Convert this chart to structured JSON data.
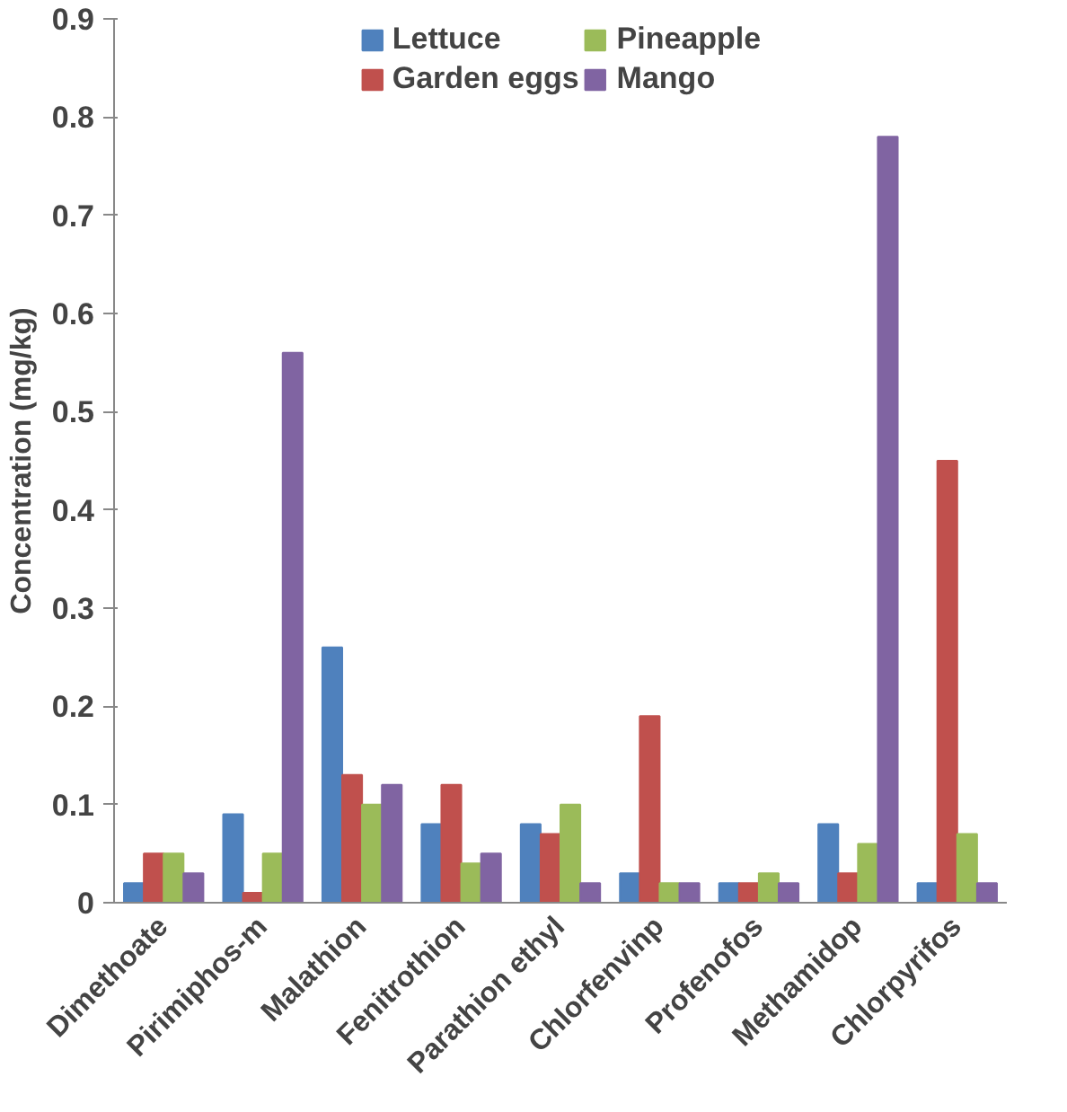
{
  "chart_data": {
    "type": "bar",
    "ylabel": "Concentration (mg/kg)",
    "categories": [
      "Dimethoate",
      "Pirimiphos-m",
      "Malathion",
      "Fenitrothion",
      "Parathion ethyl",
      "Chlorfenvinp",
      "Profenofos",
      "Methamidop",
      "Chlorpyrifos"
    ],
    "series": [
      {
        "name": "Lettuce",
        "color": "#4f81bd",
        "values": [
          0.02,
          0.09,
          0.26,
          0.08,
          0.08,
          0.03,
          0.02,
          0.08,
          0.02
        ]
      },
      {
        "name": "Garden eggs",
        "color": "#c0504d",
        "values": [
          0.05,
          0.01,
          0.13,
          0.12,
          0.07,
          0.19,
          0.02,
          0.03,
          0.45
        ]
      },
      {
        "name": "Pineapple",
        "color": "#9bbb59",
        "values": [
          0.05,
          0.05,
          0.1,
          0.04,
          0.1,
          0.02,
          0.03,
          0.06,
          0.07
        ]
      },
      {
        "name": "Mango",
        "color": "#8064a2",
        "values": [
          0.03,
          0.56,
          0.12,
          0.05,
          0.02,
          0.02,
          0.02,
          0.78,
          0.02
        ]
      }
    ],
    "ylim": [
      0,
      0.9
    ],
    "yticks": [
      0,
      0.1,
      0.2,
      0.3,
      0.4,
      0.5,
      0.6,
      0.7,
      0.8,
      0.9
    ],
    "grid": false,
    "legend": "top"
  }
}
